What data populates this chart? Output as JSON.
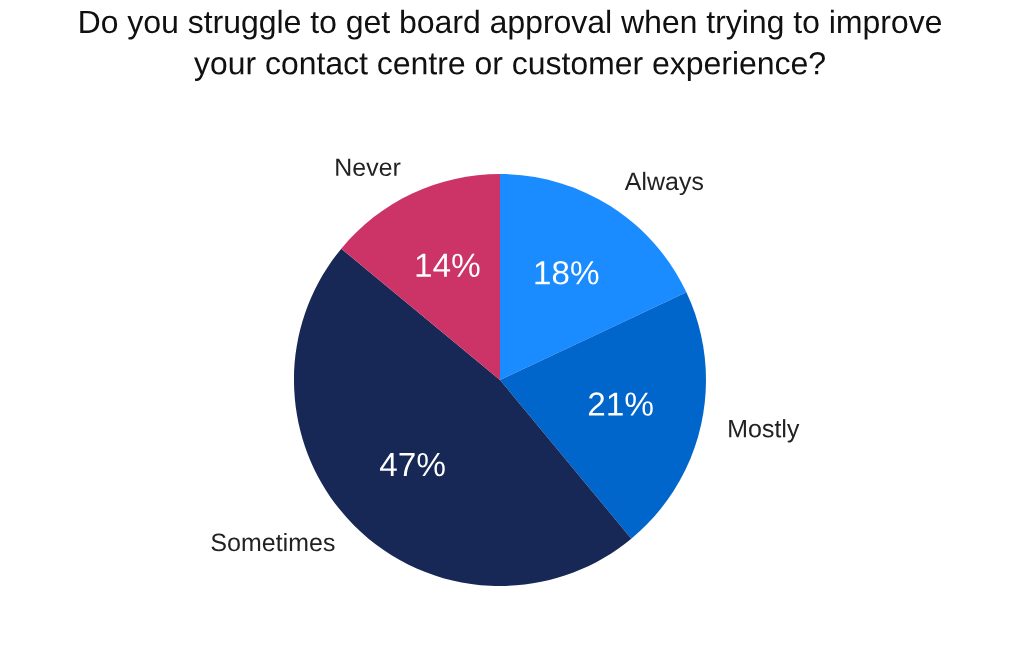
{
  "chart_data": {
    "type": "pie",
    "title": "Do you struggle to get board approval when trying to improve\nyour contact centre or customer experience?",
    "categories": [
      "Always",
      "Mostly",
      "Sometimes",
      "Never"
    ],
    "values": [
      18,
      21,
      47,
      14
    ],
    "colors": [
      "#1a8cff",
      "#0066cc",
      "#172856",
      "#cc3366"
    ],
    "value_labels": [
      "18%",
      "21%",
      "47%",
      "14%"
    ]
  }
}
